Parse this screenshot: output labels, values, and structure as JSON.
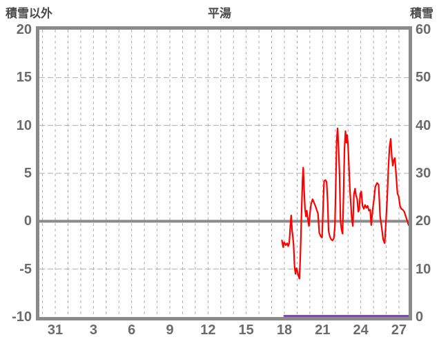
{
  "header": {
    "left_axis_title": "積雪以外",
    "station": "平湯",
    "right_axis_title": "積雪"
  },
  "colors": {
    "temperature_line": "#ff0000",
    "snow_line": "#7a51a1",
    "frame": "#8a8a8a",
    "grid": "#adadad",
    "zero_line": "#8a8a8a",
    "axis_text": "#6b6b6b",
    "title_text": "#4a4a4a"
  },
  "chart_data": {
    "type": "line",
    "title": "平湯",
    "left_axis": {
      "label": "積雪以外",
      "ticks": [
        20,
        15,
        10,
        5,
        0,
        -5,
        -10
      ],
      "range": [
        -10,
        20
      ]
    },
    "right_axis": {
      "label": "積雪",
      "ticks": [
        60,
        50,
        40,
        30,
        20,
        10,
        0
      ],
      "range": [
        0,
        60
      ]
    },
    "x_axis": {
      "tick_labels": [
        "31",
        "3",
        "6",
        "9",
        "12",
        "15",
        "18",
        "21",
        "24",
        "27"
      ],
      "tick_days": [
        0,
        3,
        6,
        9,
        12,
        15,
        18,
        21,
        24,
        27
      ],
      "range_days": [
        -1.25,
        27.76
      ],
      "gridline_every_days": 1
    },
    "grid": true,
    "zero_line_value": 0,
    "legend": "none",
    "series": [
      {
        "name": "temperature",
        "axis": "left",
        "color": "#ff0000",
        "width": 2.2,
        "points": [
          [
            17.81,
            -2.0
          ],
          [
            17.86,
            -2.4
          ],
          [
            17.9,
            -2.7
          ],
          [
            17.97,
            -2.2
          ],
          [
            18.04,
            -2.3
          ],
          [
            18.1,
            -2.5
          ],
          [
            18.16,
            -2.4
          ],
          [
            18.22,
            -2.3
          ],
          [
            18.3,
            -2.6
          ],
          [
            18.38,
            -2.3
          ],
          [
            18.47,
            -0.4
          ],
          [
            18.53,
            0.6
          ],
          [
            18.6,
            -0.9
          ],
          [
            18.66,
            -1.6
          ],
          [
            18.72,
            -2.4
          ],
          [
            18.8,
            -4.8
          ],
          [
            18.87,
            -5.5
          ],
          [
            18.94,
            -4.9
          ],
          [
            19.02,
            -5.2
          ],
          [
            19.1,
            -5.7
          ],
          [
            19.18,
            -6.0
          ],
          [
            19.26,
            -3.5
          ],
          [
            19.34,
            0.5
          ],
          [
            19.42,
            4.2
          ],
          [
            19.48,
            5.6
          ],
          [
            19.55,
            3.2
          ],
          [
            19.62,
            1.3
          ],
          [
            19.69,
            0.5
          ],
          [
            19.76,
            1.1
          ],
          [
            19.85,
            0.2
          ],
          [
            19.93,
            -0.5
          ],
          [
            20.02,
            1.0
          ],
          [
            20.1,
            1.8
          ],
          [
            20.22,
            2.3
          ],
          [
            20.34,
            1.9
          ],
          [
            20.46,
            1.5
          ],
          [
            20.56,
            1.1
          ],
          [
            20.64,
            0.8
          ],
          [
            20.74,
            -1.2
          ],
          [
            20.86,
            -1.6
          ],
          [
            20.96,
            -1.7
          ],
          [
            21.04,
            1.5
          ],
          [
            21.12,
            4.2
          ],
          [
            21.22,
            4.3
          ],
          [
            21.32,
            4.1
          ],
          [
            21.4,
            2.0
          ],
          [
            21.47,
            -1.0
          ],
          [
            21.57,
            -1.6
          ],
          [
            21.68,
            -1.9
          ],
          [
            21.78,
            -2.0
          ],
          [
            21.88,
            -1.8
          ],
          [
            21.97,
            -0.5
          ],
          [
            22.04,
            4.0
          ],
          [
            22.11,
            8.5
          ],
          [
            22.18,
            9.7
          ],
          [
            22.26,
            7.5
          ],
          [
            22.33,
            4.9
          ],
          [
            22.41,
            0.0
          ],
          [
            22.49,
            -0.9
          ],
          [
            22.57,
            -1.3
          ],
          [
            22.64,
            2.5
          ],
          [
            22.72,
            7.6
          ],
          [
            22.8,
            9.4
          ],
          [
            22.87,
            8.2
          ],
          [
            22.93,
            9.0
          ],
          [
            23.0,
            8.0
          ],
          [
            23.08,
            5.4
          ],
          [
            23.15,
            3.2
          ],
          [
            23.22,
            1.8
          ],
          [
            23.3,
            0.2
          ],
          [
            23.38,
            -0.5
          ],
          [
            23.46,
            2.8
          ],
          [
            23.55,
            3.4
          ],
          [
            23.63,
            2.7
          ],
          [
            23.72,
            2.3
          ],
          [
            23.8,
            1.0
          ],
          [
            23.88,
            1.2
          ],
          [
            23.96,
            2.9
          ],
          [
            24.04,
            3.1
          ],
          [
            24.14,
            1.6
          ],
          [
            24.24,
            1.3
          ],
          [
            24.34,
            1.7
          ],
          [
            24.44,
            1.4
          ],
          [
            24.54,
            1.6
          ],
          [
            24.64,
            1.1
          ],
          [
            24.74,
            1.2
          ],
          [
            24.82,
            -0.4
          ],
          [
            24.92,
            1.0
          ],
          [
            25.04,
            2.3
          ],
          [
            25.14,
            3.6
          ],
          [
            25.28,
            4.0
          ],
          [
            25.4,
            3.8
          ],
          [
            25.52,
            0.5
          ],
          [
            25.64,
            -0.6
          ],
          [
            25.76,
            -1.9
          ],
          [
            25.88,
            -2.3
          ],
          [
            25.98,
            0.0
          ],
          [
            26.08,
            2.5
          ],
          [
            26.16,
            5.3
          ],
          [
            26.26,
            7.7
          ],
          [
            26.35,
            8.6
          ],
          [
            26.44,
            6.7
          ],
          [
            26.52,
            5.8
          ],
          [
            26.6,
            6.4
          ],
          [
            26.68,
            6.6
          ],
          [
            26.78,
            4.8
          ],
          [
            26.88,
            2.9
          ],
          [
            26.98,
            2.6
          ],
          [
            27.08,
            1.6
          ],
          [
            27.18,
            1.3
          ],
          [
            27.3,
            1.2
          ],
          [
            27.42,
            1.0
          ],
          [
            27.54,
            0.5
          ],
          [
            27.66,
            0.0
          ],
          [
            27.76,
            -0.4
          ]
        ]
      },
      {
        "name": "snow_depth",
        "axis": "right",
        "color": "#7a51a1",
        "width": 3,
        "points": [
          [
            18.0,
            0
          ],
          [
            27.76,
            0
          ]
        ]
      }
    ]
  }
}
